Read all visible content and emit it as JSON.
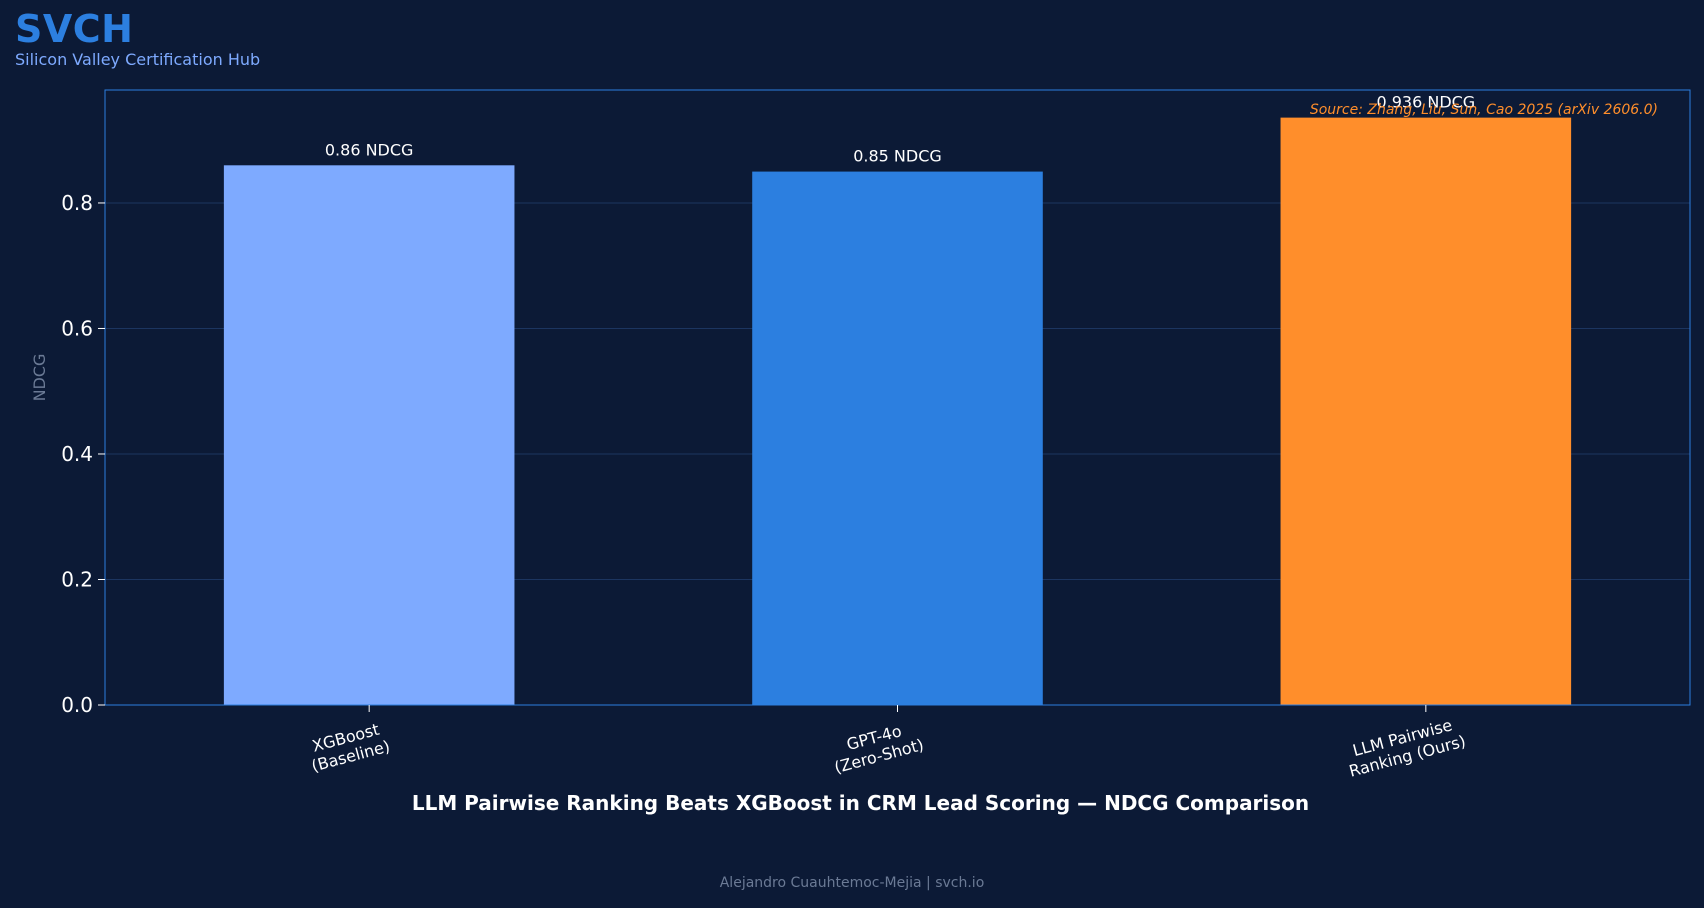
{
  "brand": {
    "title": "SVCH",
    "subtitle": "Silicon Valley Certification Hub"
  },
  "footer": {
    "text": "Alejandro Cuauhtemoc-Mejia  |  svch.io"
  },
  "colors": {
    "background": "#0c1a36",
    "frame": "#2c7fe0",
    "grid": "#1c3560",
    "text": "#ffffff",
    "muted": "#6b7a95",
    "source": "#ff8e2b"
  },
  "chart_data": {
    "type": "bar",
    "title": "LLM Pairwise Ranking Beats XGBoost in CRM Lead Scoring — NDCG Comparison",
    "xlabel": "",
    "ylabel": "NDCG",
    "ylim": [
      0,
      0.98
    ],
    "yticks": [
      0.0,
      0.2,
      0.4,
      0.6,
      0.8
    ],
    "ytick_labels": [
      "0.0",
      "0.2",
      "0.4",
      "0.6",
      "0.8"
    ],
    "grid": true,
    "annotation": "Source: Zhang, Liu, Sun, Cao 2025 (arXiv 2606.0)",
    "categories": [
      [
        "XGBoost",
        "(Baseline)"
      ],
      [
        "GPT-4o",
        "(Zero-Shot)"
      ],
      [
        "LLM Pairwise",
        "Ranking (Ours)"
      ]
    ],
    "values": [
      0.86,
      0.85,
      0.936
    ],
    "value_labels": [
      "0.86 NDCG",
      "0.85 NDCG",
      "0.936 NDCG"
    ],
    "bar_colors": [
      "#7eaaff",
      "#2c7fe0",
      "#ff8e2b"
    ]
  }
}
